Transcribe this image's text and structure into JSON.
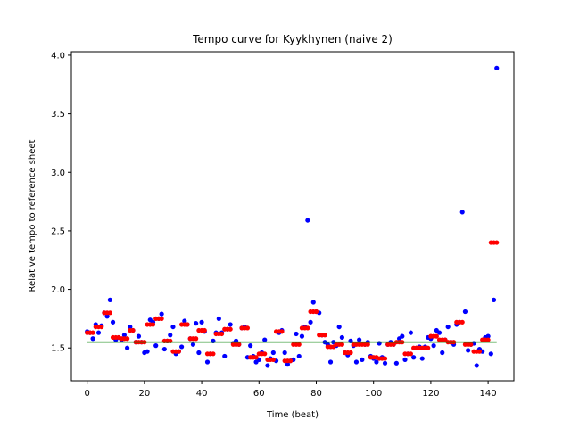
{
  "chart_data": {
    "type": "scatter",
    "title": "Tempo curve for Kyykhynen (naive 2)",
    "xlabel": "Time (beat)",
    "ylabel": "Relative tempo to reference sheet",
    "xlim": [
      -5.5,
      149
    ],
    "ylim": [
      1.22,
      4.03
    ],
    "xticks": [
      0,
      20,
      40,
      60,
      80,
      100,
      120,
      140
    ],
    "yticks": [
      1.5,
      2.0,
      2.5,
      3.0,
      3.5,
      4.0
    ],
    "xtick_labels": [
      "0",
      "20",
      "40",
      "60",
      "80",
      "100",
      "120",
      "140"
    ],
    "ytick_labels": [
      "1.5",
      "2.0",
      "2.5",
      "3.0",
      "3.5",
      "4.0"
    ],
    "grid": false,
    "colors": {
      "raw": "#0000ff",
      "smoothed": "#ff0000",
      "mean": "#008000"
    },
    "series": [
      {
        "marker": "dot",
        "color": "#0000ff",
        "x": [
          0,
          1,
          2,
          3,
          4,
          5,
          6,
          7,
          8,
          9,
          10,
          11,
          12,
          13,
          14,
          15,
          16,
          17,
          18,
          19,
          20,
          21,
          22,
          23,
          24,
          25,
          26,
          27,
          28,
          29,
          30,
          31,
          32,
          33,
          34,
          35,
          36,
          37,
          38,
          39,
          40,
          41,
          42,
          43,
          44,
          45,
          46,
          47,
          48,
          49,
          50,
          51,
          52,
          53,
          54,
          55,
          56,
          57,
          58,
          59,
          60,
          61,
          62,
          63,
          64,
          65,
          66,
          67,
          68,
          69,
          70,
          71,
          72,
          73,
          74,
          75,
          76,
          77,
          78,
          79,
          80,
          81,
          82,
          83,
          84,
          85,
          86,
          87,
          88,
          89,
          90,
          91,
          92,
          93,
          94,
          95,
          96,
          97,
          98,
          99,
          100,
          101,
          102,
          103,
          104,
          105,
          106,
          107,
          108,
          109,
          110,
          111,
          112,
          113,
          114,
          115,
          116,
          117,
          118,
          119,
          120,
          121,
          122,
          123,
          124,
          125,
          126,
          127,
          128,
          129,
          130,
          131,
          132,
          133,
          134,
          135,
          136,
          137,
          138,
          139,
          140,
          141,
          142,
          143
        ],
        "y": [
          1.64,
          1.63,
          1.58,
          1.7,
          1.63,
          1.69,
          1.8,
          1.77,
          1.91,
          1.72,
          1.57,
          1.59,
          1.57,
          1.61,
          1.5,
          1.68,
          1.65,
          1.55,
          1.6,
          1.55,
          1.46,
          1.47,
          1.74,
          1.72,
          1.52,
          1.75,
          1.79,
          1.49,
          1.56,
          1.61,
          1.68,
          1.45,
          1.47,
          1.51,
          1.73,
          1.7,
          1.58,
          1.53,
          1.71,
          1.46,
          1.72,
          1.64,
          1.38,
          1.45,
          1.56,
          1.63,
          1.75,
          1.63,
          1.43,
          1.66,
          1.7,
          1.54,
          1.56,
          1.53,
          1.67,
          1.68,
          1.42,
          1.52,
          1.43,
          1.38,
          1.4,
          1.46,
          1.57,
          1.35,
          1.41,
          1.46,
          1.39,
          1.63,
          1.65,
          1.46,
          1.36,
          1.39,
          1.4,
          1.62,
          1.43,
          1.6,
          1.68,
          2.59,
          1.72,
          1.89,
          1.81,
          1.8,
          1.61,
          1.55,
          1.53,
          1.38,
          1.55,
          1.52,
          1.68,
          1.59,
          1.46,
          1.44,
          1.56,
          1.52,
          1.38,
          1.57,
          1.4,
          1.53,
          1.55,
          1.43,
          1.41,
          1.38,
          1.54,
          1.42,
          1.37,
          1.53,
          1.55,
          1.53,
          1.37,
          1.58,
          1.6,
          1.4,
          1.45,
          1.63,
          1.42,
          1.5,
          1.51,
          1.41,
          1.51,
          1.59,
          1.58,
          1.52,
          1.65,
          1.63,
          1.46,
          1.57,
          1.68,
          1.55,
          1.53,
          1.7,
          1.72,
          2.66,
          1.81,
          1.48,
          1.53,
          1.54,
          1.35,
          1.49,
          1.47,
          1.59,
          1.6,
          1.45,
          1.91,
          3.89
        ]
      },
      {
        "marker": "dot",
        "color": "#ff0000",
        "x": [
          0,
          1,
          2,
          3,
          4,
          5,
          6,
          7,
          8,
          9,
          10,
          11,
          12,
          13,
          14,
          15,
          16,
          17,
          18,
          19,
          20,
          21,
          22,
          23,
          24,
          25,
          26,
          27,
          28,
          29,
          30,
          31,
          32,
          33,
          34,
          35,
          36,
          37,
          38,
          39,
          40,
          41,
          42,
          43,
          44,
          45,
          46,
          47,
          48,
          49,
          50,
          51,
          52,
          53,
          54,
          55,
          56,
          57,
          58,
          59,
          60,
          61,
          62,
          63,
          64,
          65,
          66,
          67,
          68,
          69,
          70,
          71,
          72,
          73,
          74,
          75,
          76,
          77,
          78,
          79,
          80,
          81,
          82,
          83,
          84,
          85,
          86,
          87,
          88,
          89,
          90,
          91,
          92,
          93,
          94,
          95,
          96,
          97,
          98,
          99,
          100,
          101,
          102,
          103,
          104,
          105,
          106,
          107,
          108,
          109,
          110,
          111,
          112,
          113,
          114,
          115,
          116,
          117,
          118,
          119,
          120,
          121,
          122,
          123,
          124,
          125,
          126,
          127,
          128,
          129,
          130,
          131,
          132,
          133,
          134,
          135,
          136,
          137,
          138,
          139,
          140,
          141,
          142,
          143
        ],
        "y": [
          1.63,
          1.63,
          1.63,
          1.68,
          1.68,
          1.68,
          1.8,
          1.8,
          1.8,
          1.59,
          1.59,
          1.59,
          1.58,
          1.58,
          1.58,
          1.65,
          1.65,
          1.55,
          1.55,
          1.55,
          1.55,
          1.7,
          1.7,
          1.7,
          1.75,
          1.75,
          1.75,
          1.56,
          1.56,
          1.56,
          1.47,
          1.47,
          1.47,
          1.7,
          1.7,
          1.7,
          1.58,
          1.58,
          1.58,
          1.65,
          1.65,
          1.65,
          1.45,
          1.45,
          1.45,
          1.62,
          1.62,
          1.62,
          1.66,
          1.66,
          1.66,
          1.53,
          1.53,
          1.53,
          1.67,
          1.67,
          1.67,
          1.42,
          1.42,
          1.42,
          1.45,
          1.45,
          1.45,
          1.4,
          1.4,
          1.4,
          1.64,
          1.64,
          1.64,
          1.39,
          1.39,
          1.39,
          1.53,
          1.53,
          1.53,
          1.67,
          1.67,
          1.67,
          1.81,
          1.81,
          1.81,
          1.61,
          1.61,
          1.61,
          1.51,
          1.51,
          1.51,
          1.53,
          1.53,
          1.53,
          1.46,
          1.46,
          1.46,
          1.53,
          1.53,
          1.53,
          1.53,
          1.53,
          1.53,
          1.42,
          1.42,
          1.42,
          1.41,
          1.41,
          1.41,
          1.53,
          1.53,
          1.53,
          1.55,
          1.55,
          1.55,
          1.45,
          1.45,
          1.45,
          1.5,
          1.5,
          1.5,
          1.5,
          1.5,
          1.5,
          1.6,
          1.6,
          1.6,
          1.57,
          1.57,
          1.57,
          1.55,
          1.55,
          1.55,
          1.72,
          1.72,
          1.72,
          1.53,
          1.53,
          1.53,
          1.47,
          1.47,
          1.47,
          1.57,
          1.57,
          1.57,
          2.4,
          2.4,
          2.4
        ]
      },
      {
        "marker": "line",
        "color": "#008000",
        "x": [
          0,
          143
        ],
        "y": [
          1.55,
          1.55
        ]
      }
    ]
  }
}
